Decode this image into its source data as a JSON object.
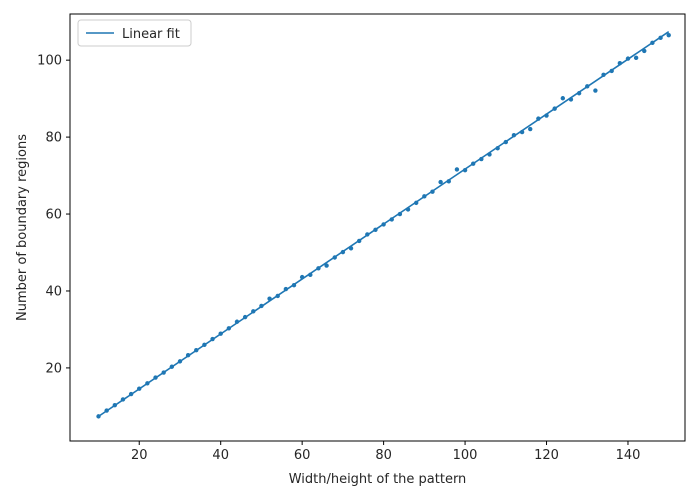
{
  "chart_data": {
    "type": "scatter",
    "xlabel": "Width/height of the pattern",
    "ylabel": "Number of boundary regions",
    "xlim": [
      3,
      154
    ],
    "ylim": [
      1,
      112
    ],
    "x_ticks": [
      20,
      40,
      60,
      80,
      100,
      120,
      140
    ],
    "y_ticks": [
      20,
      40,
      60,
      80,
      100
    ],
    "grid": false,
    "legend": {
      "position": "top-left",
      "entries": [
        "Linear fit"
      ]
    },
    "colors": {
      "line": "#1f77b4",
      "points": "#1f77b4"
    },
    "series": [
      {
        "name": "Linear fit",
        "kind": "line",
        "x": [
          10,
          150
        ],
        "y": [
          7.4,
          107.4
        ]
      },
      {
        "kind": "scatter",
        "x": [
          10,
          12,
          14,
          16,
          18,
          20,
          22,
          24,
          26,
          28,
          30,
          32,
          34,
          36,
          38,
          40,
          42,
          44,
          46,
          48,
          50,
          52,
          54,
          56,
          58,
          60,
          62,
          64,
          66,
          68,
          70,
          72,
          74,
          76,
          78,
          80,
          82,
          84,
          86,
          88,
          90,
          92,
          94,
          96,
          98,
          100,
          102,
          104,
          106,
          108,
          110,
          112,
          114,
          116,
          118,
          120,
          122,
          124,
          126,
          128,
          130,
          132,
          134,
          136,
          138,
          140,
          142,
          144,
          146,
          148,
          150
        ],
        "y": [
          7.4,
          8.9,
          10.3,
          11.8,
          13.2,
          14.6,
          16.0,
          17.5,
          18.8,
          20.3,
          21.7,
          23.3,
          24.6,
          26.0,
          27.5,
          28.9,
          30.3,
          32.0,
          33.2,
          34.7,
          36.1,
          38.0,
          38.7,
          40.5,
          41.5,
          43.6,
          44.2,
          45.9,
          46.6,
          48.7,
          50.1,
          51.1,
          53.0,
          54.7,
          55.9,
          57.3,
          58.6,
          60.0,
          61.2,
          62.9,
          64.6,
          65.8,
          68.3,
          68.5,
          71.6,
          71.4,
          73.1,
          74.3,
          75.5,
          77.1,
          78.7,
          80.5,
          81.3,
          82.1,
          84.8,
          85.6,
          87.4,
          90.1,
          89.8,
          91.4,
          93.2,
          92.1,
          96.2,
          97.2,
          99.2,
          100.4,
          100.6,
          102.4,
          104.5,
          105.8,
          106.5
        ]
      }
    ]
  }
}
